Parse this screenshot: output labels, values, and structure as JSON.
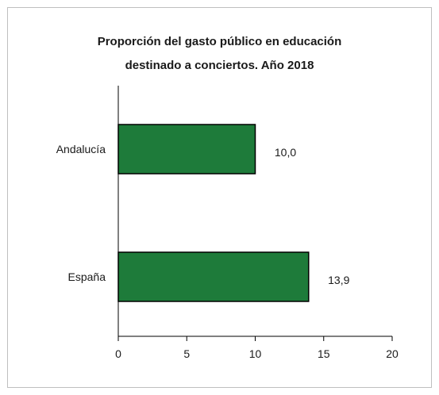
{
  "chart_data": {
    "type": "bar",
    "orientation": "horizontal",
    "title_lines": [
      "Proporción del gasto público en educación",
      "destinado a conciertos. Año 2018"
    ],
    "categories": [
      "Andalucía",
      "España"
    ],
    "values": [
      10.0,
      13.9
    ],
    "value_labels": [
      "10,0",
      "13,9"
    ],
    "xlim": [
      0,
      20
    ],
    "xticks": [
      "0",
      "5",
      "10",
      "15",
      "20"
    ],
    "grid": false,
    "bar_color": "#1e7b3a",
    "bar_edge_color": "#000000"
  }
}
